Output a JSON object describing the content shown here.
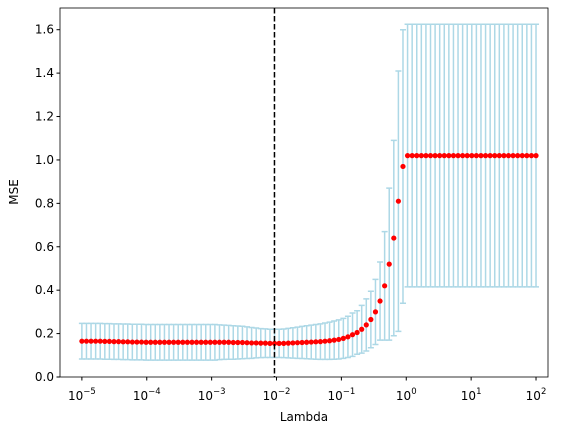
{
  "chart_data": {
    "type": "errorbar",
    "xlabel": "Lambda",
    "ylabel": "MSE",
    "xscale": "log",
    "xlim": [
      4.6e-06,
      153
    ],
    "ylim": [
      0,
      1.7
    ],
    "xticks": [
      {
        "value": 1e-05,
        "label": "10",
        "exponent": "−5"
      },
      {
        "value": 0.0001,
        "label": "10",
        "exponent": "−4"
      },
      {
        "value": 0.001,
        "label": "10",
        "exponent": "−3"
      },
      {
        "value": 0.01,
        "label": "10",
        "exponent": "−2"
      },
      {
        "value": 0.1,
        "label": "10",
        "exponent": "−1"
      },
      {
        "value": 1,
        "label": "10",
        "exponent": "0"
      },
      {
        "value": 10,
        "label": "10",
        "exponent": "1"
      },
      {
        "value": 100,
        "label": "10",
        "exponent": "2"
      }
    ],
    "yticks": [
      {
        "value": 0,
        "label": "0.0"
      },
      {
        "value": 0.2,
        "label": "0.2"
      },
      {
        "value": 0.4,
        "label": "0.4"
      },
      {
        "value": 0.6,
        "label": "0.6"
      },
      {
        "value": 0.8,
        "label": "0.8"
      },
      {
        "value": 1.0,
        "label": "1.0"
      },
      {
        "value": 1.2,
        "label": "1.2"
      },
      {
        "value": 1.4,
        "label": "1.4"
      },
      {
        "value": 1.6,
        "label": "1.6"
      }
    ],
    "vline": 0.0093,
    "vline_color": "#000000",
    "x": [
      1e-05,
      1.1768e-05,
      1.3849e-05,
      1.6298e-05,
      1.9179e-05,
      2.257e-05,
      2.6561e-05,
      3.1257e-05,
      3.6784e-05,
      4.3288e-05,
      5.0941e-05,
      5.9948e-05,
      7.0548e-05,
      8.3022e-05,
      9.7701e-05,
      0.00011498,
      0.00013531,
      0.00015923,
      0.00018738,
      0.00022051,
      0.0002595,
      0.00030539,
      0.00035938,
      0.00042292,
      0.0004977,
      0.0005857,
      0.00068926,
      0.00081113,
      0.00095455,
      0.0011233,
      0.0013219,
      0.0015557,
      0.0018307,
      0.0021544,
      0.0025354,
      0.0029836,
      0.0035112,
      0.004132,
      0.0048626,
      0.0057224,
      0.0067342,
      0.0079248,
      0.009326,
      0.010975,
      0.012915,
      0.015199,
      0.017886,
      0.021049,
      0.024771,
      0.029151,
      0.034305,
      0.04037,
      0.047508,
      0.055908,
      0.065793,
      0.077426,
      0.091116,
      0.10723,
      0.12619,
      0.1485,
      0.17475,
      0.20565,
      0.24201,
      0.2848,
      0.33516,
      0.39442,
      0.46416,
      0.54623,
      0.64281,
      0.75646,
      0.89022,
      1.0476,
      1.2328,
      1.4508,
      1.7074,
      2.0092,
      2.3645,
      2.7826,
      3.2745,
      3.8535,
      4.5349,
      5.3367,
      6.2803,
      7.3907,
      8.6975,
      10.235,
      12.045,
      14.175,
      16.681,
      19.63,
      23.101,
      27.186,
      31.993,
      37.649,
      44.306,
      52.14,
      61.359,
      72.208,
      84.975,
      100
    ],
    "series": [
      {
        "color": "#ff0000",
        "error_color": "#add8e6",
        "values": [
          0.165,
          0.165,
          0.165,
          0.165,
          0.165,
          0.164,
          0.164,
          0.163,
          0.163,
          0.162,
          0.162,
          0.161,
          0.161,
          0.161,
          0.16,
          0.16,
          0.16,
          0.16,
          0.16,
          0.16,
          0.16,
          0.16,
          0.16,
          0.16,
          0.16,
          0.16,
          0.16,
          0.16,
          0.16,
          0.16,
          0.16,
          0.16,
          0.16,
          0.159,
          0.159,
          0.159,
          0.158,
          0.157,
          0.157,
          0.156,
          0.156,
          0.155,
          0.155,
          0.155,
          0.155,
          0.156,
          0.157,
          0.158,
          0.159,
          0.16,
          0.161,
          0.162,
          0.163,
          0.165,
          0.167,
          0.17,
          0.173,
          0.178,
          0.185,
          0.195,
          0.205,
          0.22,
          0.24,
          0.265,
          0.3,
          0.35,
          0.42,
          0.52,
          0.64,
          0.81,
          0.97,
          1.02,
          1.02,
          1.02,
          1.02,
          1.02,
          1.02,
          1.02,
          1.02,
          1.02,
          1.02,
          1.02,
          1.02,
          1.02,
          1.02,
          1.02,
          1.02,
          1.02,
          1.02,
          1.02,
          1.02,
          1.02,
          1.02,
          1.02,
          1.02,
          1.02,
          1.02,
          1.02,
          1.02,
          1.02
        ],
        "errors": [
          0.082,
          0.082,
          0.082,
          0.082,
          0.082,
          0.082,
          0.082,
          0.082,
          0.082,
          0.082,
          0.082,
          0.082,
          0.082,
          0.082,
          0.082,
          0.082,
          0.082,
          0.082,
          0.082,
          0.082,
          0.082,
          0.082,
          0.082,
          0.082,
          0.082,
          0.082,
          0.082,
          0.082,
          0.082,
          0.082,
          0.08,
          0.079,
          0.078,
          0.077,
          0.076,
          0.075,
          0.073,
          0.071,
          0.069,
          0.067,
          0.066,
          0.065,
          0.065,
          0.065,
          0.066,
          0.068,
          0.07,
          0.072,
          0.074,
          0.076,
          0.078,
          0.08,
          0.082,
          0.084,
          0.086,
          0.088,
          0.09,
          0.092,
          0.095,
          0.1,
          0.1,
          0.11,
          0.12,
          0.13,
          0.15,
          0.18,
          0.25,
          0.35,
          0.45,
          0.6,
          0.63,
          0.605,
          0.605,
          0.605,
          0.605,
          0.605,
          0.605,
          0.605,
          0.605,
          0.605,
          0.605,
          0.605,
          0.605,
          0.605,
          0.605,
          0.605,
          0.605,
          0.605,
          0.605,
          0.605,
          0.605,
          0.605,
          0.605,
          0.605,
          0.605,
          0.605,
          0.605,
          0.605,
          0.605,
          0.605
        ]
      }
    ]
  }
}
